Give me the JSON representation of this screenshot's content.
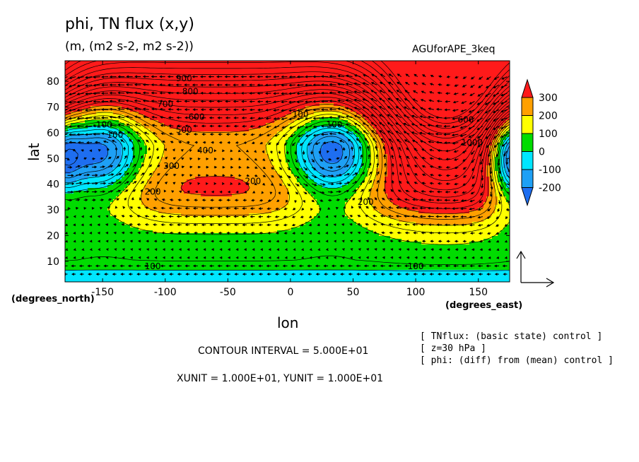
{
  "header": {
    "title": "phi, TN flux (x,y)",
    "units": "(m, (m2 s-2, m2 s-2))",
    "dataset": "AGUforAPE_3keq"
  },
  "axes": {
    "xlabel": "lon",
    "ylabel": "lat",
    "xunit": "(degrees_east)",
    "yunit": "(degrees_north)"
  },
  "footer": {
    "contour_interval": "CONTOUR INTERVAL = 5.000E+01",
    "xy_unit": "XUNIT = 1.000E+01, YUNIT = 1.000E+01",
    "notes": [
      "[ TNflux: (basic state) control ]",
      "[ z=30 hPa ]",
      "[ phi: (diff) from (mean) control ]"
    ]
  },
  "colors": {
    "level_n250": "#1e6ef0",
    "level_n200": "#1ea0f5",
    "level_n100": "#00e6ff",
    "level_0": "#00dc00",
    "level_100": "#ffff00",
    "level_200": "#ffa000",
    "level_300": "#ff1a1a"
  },
  "chart_data": {
    "type": "heatmap",
    "title": "phi, TN flux (x,y)",
    "xlabel": "lon",
    "ylabel": "lat",
    "xlim": [
      -180,
      175
    ],
    "ylim": [
      2,
      88
    ],
    "x_ticks": [
      -150,
      -100,
      -50,
      0,
      50,
      100,
      150
    ],
    "x_tick_labels": [
      "-150",
      "-100",
      "-50",
      "0",
      "50",
      "100",
      "150"
    ],
    "y_ticks": [
      10,
      20,
      30,
      40,
      50,
      60,
      70,
      80
    ],
    "y_tick_labels": [
      "10",
      "20",
      "30",
      "40",
      "50",
      "60",
      "70",
      "80"
    ],
    "colorbar": {
      "levels": [
        -200,
        -100,
        0,
        100,
        200,
        300
      ],
      "labels": [
        "300",
        "200",
        "100",
        "0",
        "-100",
        "-200"
      ]
    },
    "field_features": [
      {
        "kind": "low",
        "lon": -155,
        "lat": 52,
        "value": -250
      },
      {
        "kind": "low",
        "lon": 35,
        "lat": 52,
        "value": -250
      },
      {
        "kind": "high",
        "lon": 125,
        "lat": 72,
        "value": 950
      },
      {
        "kind": "low-edge",
        "lon": 175,
        "lat": 50,
        "value": -150
      }
    ],
    "contour_labels": [
      {
        "text": "900",
        "lon": -85,
        "lat": 80
      },
      {
        "text": "800",
        "lon": -80,
        "lat": 75
      },
      {
        "text": "700",
        "lon": -100,
        "lat": 70
      },
      {
        "text": "600",
        "lon": -75,
        "lat": 65
      },
      {
        "text": "500",
        "lon": -85,
        "lat": 60
      },
      {
        "text": "400",
        "lon": -68,
        "lat": 52
      },
      {
        "text": "300",
        "lon": -95,
        "lat": 46
      },
      {
        "text": "200",
        "lon": -110,
        "lat": 36
      },
      {
        "text": "200",
        "lon": -30,
        "lat": 40
      },
      {
        "text": "100",
        "lon": -110,
        "lat": 7
      },
      {
        "text": "100",
        "lon": 100,
        "lat": 7
      },
      {
        "text": "200",
        "lon": 60,
        "lat": 32
      },
      {
        "text": "100",
        "lon": -140,
        "lat": 58
      },
      {
        "text": "100",
        "lon": 8,
        "lat": 66
      },
      {
        "text": "100",
        "lon": 35,
        "lat": 62
      },
      {
        "text": "-100",
        "lon": -150,
        "lat": 62
      },
      {
        "text": "1000",
        "lon": 145,
        "lat": 55
      },
      {
        "text": "600",
        "lon": 140,
        "lat": 64
      }
    ],
    "vectors": {
      "reference_label": "",
      "description": "TN flux arrows over the full domain"
    }
  }
}
